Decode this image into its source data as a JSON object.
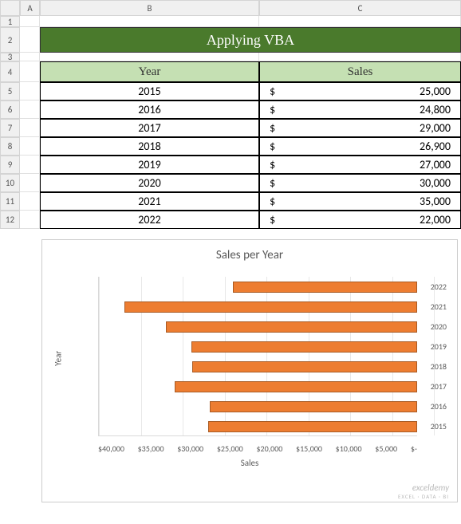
{
  "columns": [
    "A",
    "B",
    "C"
  ],
  "rows": [
    "1",
    "2",
    "3",
    "4",
    "5",
    "6",
    "7",
    "8",
    "9",
    "10",
    "11",
    "12"
  ],
  "title": "Applying VBA",
  "headers": {
    "year": "Year",
    "sales": "Sales"
  },
  "data": [
    {
      "year": "2015",
      "sales": "25,000"
    },
    {
      "year": "2016",
      "sales": "24,800"
    },
    {
      "year": "2017",
      "sales": "29,000"
    },
    {
      "year": "2018",
      "sales": "26,900"
    },
    {
      "year": "2019",
      "sales": "27,000"
    },
    {
      "year": "2020",
      "sales": "30,000"
    },
    {
      "year": "2021",
      "sales": "35,000"
    },
    {
      "year": "2022",
      "sales": "22,000"
    }
  ],
  "currency": "$",
  "chart": {
    "title": "Sales per Year",
    "ylabel": "Year",
    "xlabel": "Sales",
    "type": "bar",
    "bar_color": "#ed7d31",
    "bar_border": "#a85a23",
    "grid_color": "#e8e8e8",
    "xticks": [
      "$40,000",
      "$35,000",
      "$30,000",
      "$25,000",
      "$20,000",
      "$15,000",
      "$10,000",
      "$5,000",
      "$-"
    ],
    "xmax": 40000,
    "series": [
      {
        "label": "2022",
        "value": 22000
      },
      {
        "label": "2021",
        "value": 35000
      },
      {
        "label": "2020",
        "value": 30000
      },
      {
        "label": "2019",
        "value": 27000
      },
      {
        "label": "2018",
        "value": 26900
      },
      {
        "label": "2017",
        "value": 29000
      },
      {
        "label": "2016",
        "value": 24800
      },
      {
        "label": "2015",
        "value": 25000
      }
    ]
  },
  "watermark": {
    "main": "exceldemy",
    "sub": "EXCEL · DATA · BI"
  }
}
